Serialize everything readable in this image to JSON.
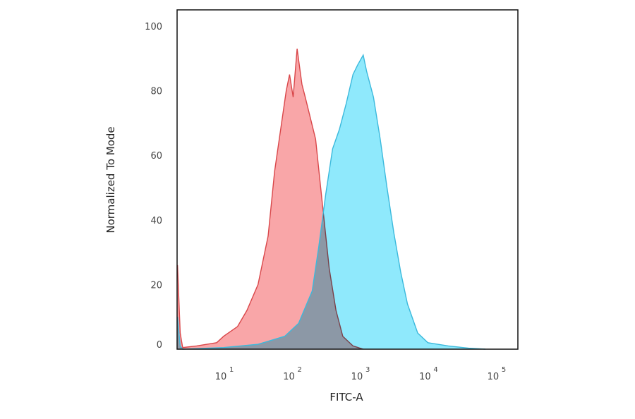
{
  "chart_data": {
    "type": "area",
    "title": "",
    "xlabel": "FITC-A",
    "ylabel": "Normalized To Mode",
    "xscale": "log",
    "xlim": [
      2.07,
      210000
    ],
    "ylim": [
      0,
      105
    ],
    "grid": false,
    "legend": "none",
    "x_ticks": [
      {
        "value": 10,
        "base": "10",
        "exp": "1"
      },
      {
        "value": 100,
        "base": "10",
        "exp": "2"
      },
      {
        "value": 1000,
        "base": "10",
        "exp": "3"
      },
      {
        "value": 10000,
        "base": "10",
        "exp": "4"
      },
      {
        "value": 100000,
        "base": "10",
        "exp": "5"
      }
    ],
    "y_ticks": [
      0,
      20,
      40,
      60,
      80,
      100
    ],
    "series": [
      {
        "color": "#d9474a",
        "fill": "#f9a6a8",
        "x": [
          2.1,
          2.3,
          2.5,
          4,
          7.9,
          10,
          16,
          22,
          32,
          45,
          56,
          71,
          83,
          93,
          105,
          120,
          141,
          158,
          224,
          282,
          355,
          447,
          562,
          794,
          1122
        ],
        "y": [
          26,
          5,
          0.5,
          1,
          2,
          4,
          7,
          12,
          20,
          35,
          55,
          70,
          80,
          85,
          78,
          93,
          82,
          78,
          65,
          45,
          25,
          12,
          4,
          1,
          0
        ]
      },
      {
        "color": "#3bb9dc",
        "fill": "#8fe9fc",
        "x": [
          2.1,
          2.3,
          2.5,
          10,
          32,
          79,
          126,
          200,
          251,
          316,
          398,
          501,
          631,
          794,
          933,
          1122,
          1259,
          1585,
          1995,
          2512,
          3162,
          3981,
          5012,
          7079,
          10000,
          19953,
          39811,
          70000
        ],
        "y": [
          10,
          1,
          0,
          0.5,
          1.5,
          4,
          8,
          18,
          32,
          48,
          62,
          68,
          76,
          85,
          88,
          91,
          86,
          78,
          65,
          50,
          36,
          24,
          14,
          5,
          2,
          1,
          0.3,
          0
        ]
      }
    ]
  }
}
